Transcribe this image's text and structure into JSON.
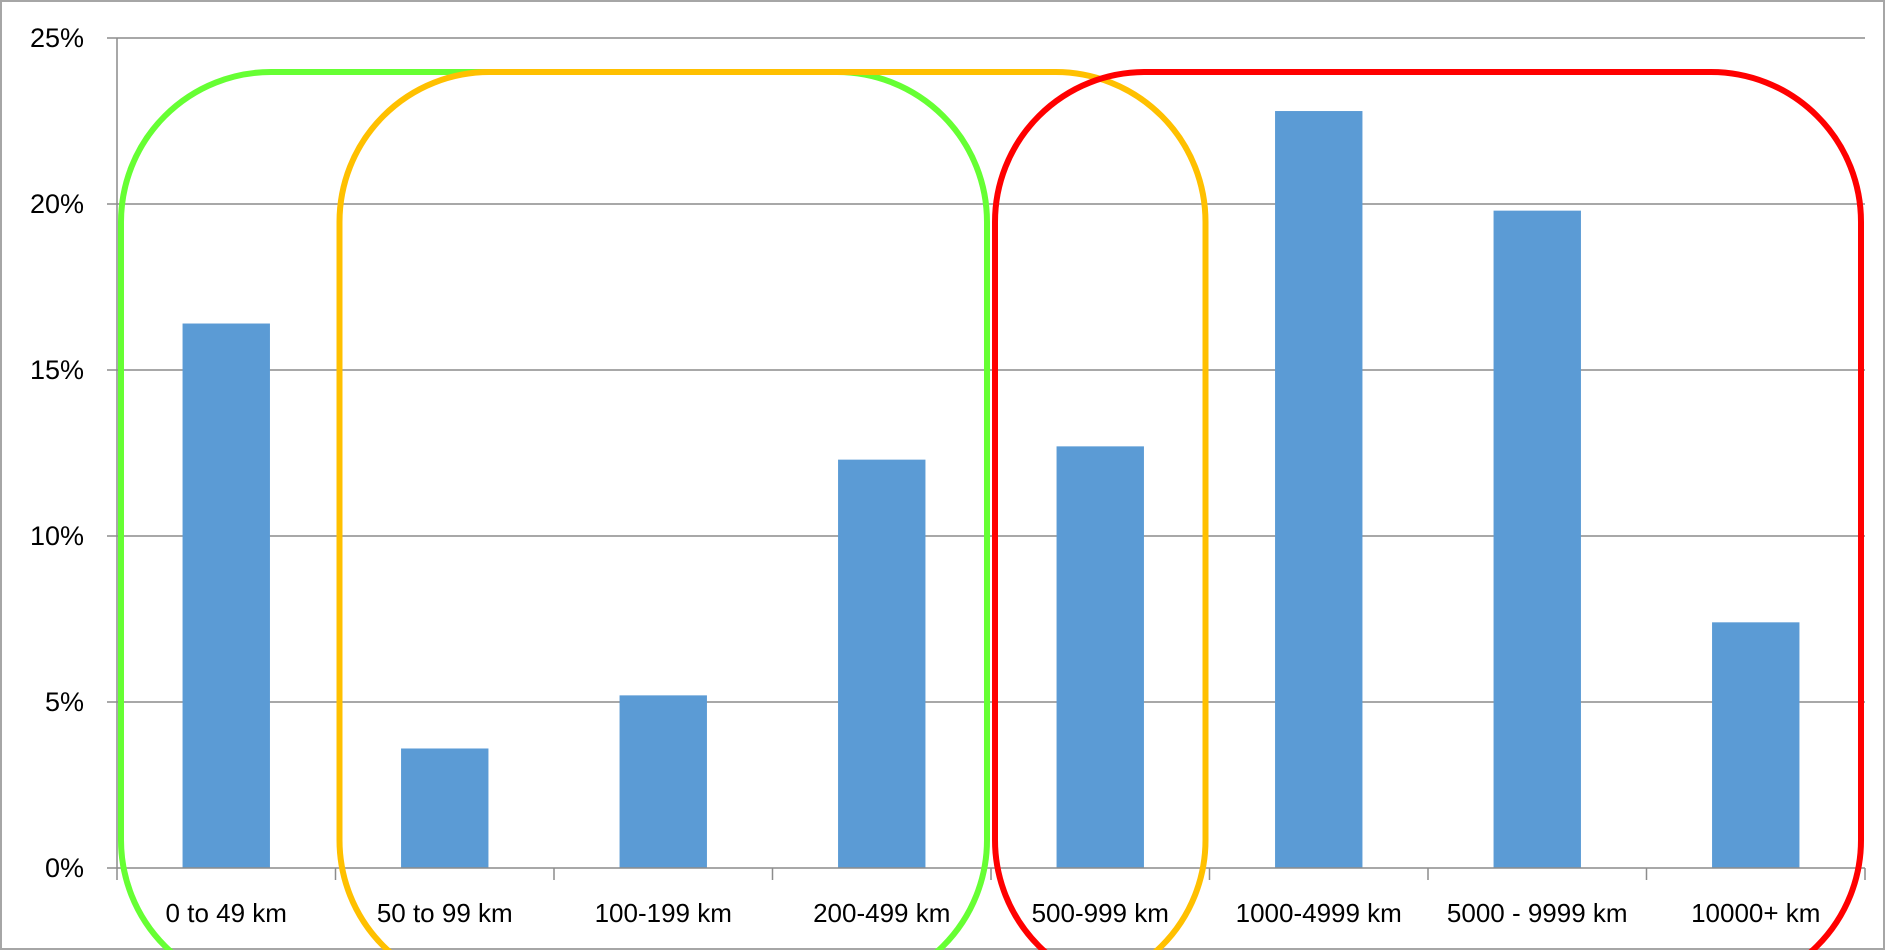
{
  "chart_data": {
    "type": "bar",
    "categories": [
      "0 to 49 km",
      "50 to 99 km",
      "100-199 km",
      "200-499 km",
      "500-999 km",
      "1000-4999 km",
      "5000 - 9999 km",
      "10000+ km"
    ],
    "values": [
      16.4,
      3.6,
      5.2,
      12.3,
      12.7,
      22.8,
      19.8,
      7.4
    ],
    "y_ticks": [
      "0%",
      "5%",
      "10%",
      "15%",
      "20%",
      "25%"
    ],
    "y_tick_values": [
      0,
      5,
      10,
      15,
      20,
      25
    ],
    "ylim": [
      0,
      25
    ],
    "grid": true,
    "title": "",
    "xlabel": "",
    "ylabel": "",
    "bar_color": "#5B9BD5",
    "groupings": [
      {
        "color": "#66FF33",
        "from_category": 0,
        "to_category": 3
      },
      {
        "color": "#FFC000",
        "from_category": 1,
        "to_category": 4
      },
      {
        "color": "#FF0000",
        "from_category": 4,
        "to_category": 7
      }
    ]
  }
}
